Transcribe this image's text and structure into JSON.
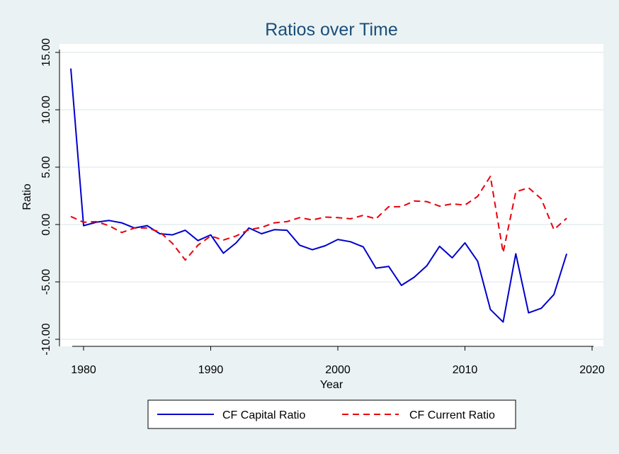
{
  "chart_data": {
    "type": "line",
    "title": "Ratios over Time",
    "xlabel": "Year",
    "ylabel": "Ratio",
    "xlim": [
      1978,
      2021
    ],
    "ylim": [
      -11,
      15.5
    ],
    "xticks": [
      1980,
      1990,
      2000,
      2010,
      2020
    ],
    "yticks": [
      -10,
      -5,
      0,
      5,
      10,
      15
    ],
    "xtick_labels": [
      "1980",
      "1990",
      "2000",
      "2010",
      "2020"
    ],
    "ytick_labels": [
      "-10.00",
      "-5.00",
      "0.00",
      "5.00",
      "10.00",
      "15.00"
    ],
    "grid": "horizontal",
    "legend_position": "bottom",
    "x": [
      1979,
      1980,
      1981,
      1982,
      1983,
      1984,
      1985,
      1986,
      1987,
      1988,
      1989,
      1990,
      1991,
      1992,
      1993,
      1994,
      1995,
      1996,
      1997,
      1998,
      1999,
      2000,
      2001,
      2002,
      2003,
      2004,
      2005,
      2006,
      2007,
      2008,
      2009,
      2010,
      2011,
      2012,
      2013,
      2014,
      2015,
      2016,
      2017,
      2018
    ],
    "series": [
      {
        "name": "CF Capital Ratio",
        "color": "#0000CC",
        "style": "solid",
        "values": [
          13.6,
          -0.1,
          0.2,
          0.35,
          0.15,
          -0.3,
          -0.1,
          -0.8,
          -0.9,
          -0.5,
          -1.4,
          -0.9,
          -2.5,
          -1.6,
          -0.3,
          -0.8,
          -0.45,
          -0.5,
          -1.8,
          -2.2,
          -1.85,
          -1.3,
          -1.5,
          -1.95,
          -3.8,
          -3.65,
          -5.3,
          -4.6,
          -3.6,
          -1.9,
          -2.9,
          -1.6,
          -3.2,
          -7.4,
          -8.5,
          -2.55,
          -7.7,
          -7.3,
          -6.1,
          -2.55
        ]
      },
      {
        "name": "CF Current Ratio",
        "color": "#E8000B",
        "style": "dashed",
        "values": [
          0.7,
          0.2,
          0.25,
          -0.1,
          -0.7,
          -0.3,
          -0.3,
          -0.65,
          -1.65,
          -3.1,
          -1.8,
          -1.0,
          -1.35,
          -1.0,
          -0.45,
          -0.25,
          0.15,
          0.25,
          0.6,
          0.4,
          0.65,
          0.6,
          0.5,
          0.8,
          0.5,
          1.55,
          1.55,
          2.05,
          2.0,
          1.6,
          1.8,
          1.7,
          2.45,
          4.2,
          -2.45,
          2.85,
          3.2,
          2.25,
          -0.45,
          0.55
        ]
      }
    ]
  }
}
